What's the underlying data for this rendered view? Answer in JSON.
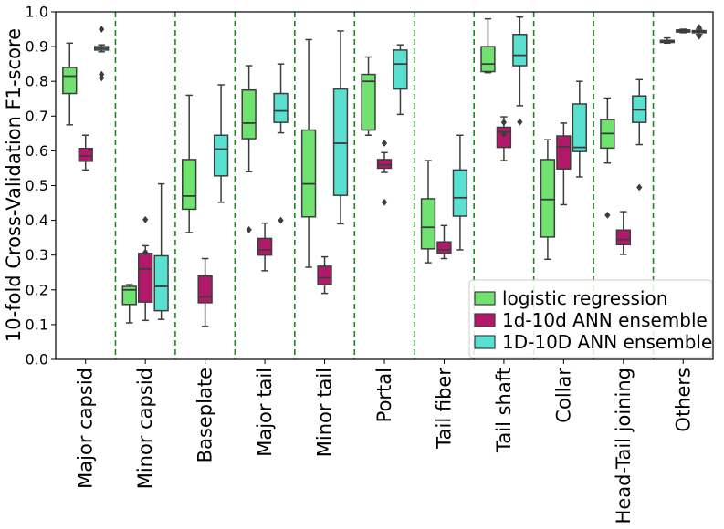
{
  "chart_data": {
    "type": "boxplot",
    "title": "",
    "xlabel": "",
    "ylabel": "10-fold Cross-Validation F1-score",
    "ylim": [
      0.0,
      1.0
    ],
    "yticks": [
      "0.0",
      "0.1",
      "0.2",
      "0.3",
      "0.4",
      "0.5",
      "0.6",
      "0.7",
      "0.8",
      "0.9",
      "1.0"
    ],
    "categories": [
      "Major capsid",
      "Minor capsid",
      "Baseplate",
      "Major tail",
      "Minor tail",
      "Portal",
      "Tail fiber",
      "Tail shaft",
      "Collar",
      "Head-Tail joining",
      "Others"
    ],
    "legend_position": "lower-right",
    "series": [
      {
        "name": "logistic regression",
        "color": "#6fe26f",
        "boxes": [
          {
            "whislo": 0.675,
            "q1": 0.765,
            "med": 0.815,
            "q3": 0.84,
            "whishi": 0.91,
            "fliers": []
          },
          {
            "whislo": 0.105,
            "q1": 0.158,
            "med": 0.2,
            "q3": 0.21,
            "whishi": 0.215,
            "fliers": []
          },
          {
            "whislo": 0.365,
            "q1": 0.432,
            "med": 0.47,
            "q3": 0.575,
            "whishi": 0.76,
            "fliers": []
          },
          {
            "whislo": 0.54,
            "q1": 0.635,
            "med": 0.68,
            "q3": 0.775,
            "whishi": 0.845,
            "fliers": [
              0.373
            ]
          },
          {
            "whislo": 0.265,
            "q1": 0.41,
            "med": 0.505,
            "q3": 0.66,
            "whishi": 0.92,
            "fliers": []
          },
          {
            "whislo": 0.645,
            "q1": 0.66,
            "med": 0.8,
            "q3": 0.82,
            "whishi": 0.87,
            "fliers": []
          },
          {
            "whislo": 0.278,
            "q1": 0.318,
            "med": 0.38,
            "q3": 0.462,
            "whishi": 0.572,
            "fliers": []
          },
          {
            "whislo": 0.825,
            "q1": 0.828,
            "med": 0.85,
            "q3": 0.9,
            "whishi": 0.98,
            "fliers": []
          },
          {
            "whislo": 0.288,
            "q1": 0.352,
            "med": 0.46,
            "q3": 0.575,
            "whishi": 0.632,
            "fliers": []
          },
          {
            "whislo": 0.565,
            "q1": 0.608,
            "med": 0.65,
            "q3": 0.69,
            "whishi": 0.752,
            "fliers": [
              0.415
            ]
          },
          {
            "whislo": 0.91,
            "q1": 0.912,
            "med": 0.915,
            "q3": 0.918,
            "whishi": 0.925,
            "fliers": []
          }
        ]
      },
      {
        "name": "1d-10d ANN ensemble",
        "color": "#b3196b",
        "boxes": [
          {
            "whislo": 0.545,
            "q1": 0.57,
            "med": 0.585,
            "q3": 0.607,
            "whishi": 0.645,
            "fliers": []
          },
          {
            "whislo": 0.112,
            "q1": 0.165,
            "med": 0.26,
            "q3": 0.305,
            "whishi": 0.327,
            "fliers": [
              0.402,
              0.308
            ]
          },
          {
            "whislo": 0.095,
            "q1": 0.163,
            "med": 0.18,
            "q3": 0.24,
            "whishi": 0.29,
            "fliers": []
          },
          {
            "whislo": 0.255,
            "q1": 0.3,
            "med": 0.315,
            "q3": 0.348,
            "whishi": 0.392,
            "fliers": []
          },
          {
            "whislo": 0.19,
            "q1": 0.215,
            "med": 0.235,
            "q3": 0.268,
            "whishi": 0.295,
            "fliers": []
          },
          {
            "whislo": 0.538,
            "q1": 0.55,
            "med": 0.56,
            "q3": 0.575,
            "whishi": 0.595,
            "fliers": [
              0.622,
              0.452
            ]
          },
          {
            "whislo": 0.29,
            "q1": 0.305,
            "med": 0.315,
            "q3": 0.338,
            "whishi": 0.385,
            "fliers": []
          },
          {
            "whislo": 0.572,
            "q1": 0.61,
            "med": 0.655,
            "q3": 0.668,
            "whishi": 0.698,
            "fliers": [
              0.682,
              0.648
            ]
          },
          {
            "whislo": 0.445,
            "q1": 0.548,
            "med": 0.612,
            "q3": 0.643,
            "whishi": 0.68,
            "fliers": []
          },
          {
            "whislo": 0.302,
            "q1": 0.33,
            "med": 0.345,
            "q3": 0.372,
            "whishi": 0.425,
            "fliers": []
          },
          {
            "whislo": 0.94,
            "q1": 0.942,
            "med": 0.945,
            "q3": 0.948,
            "whishi": 0.95,
            "fliers": []
          }
        ]
      },
      {
        "name": "1D-10D ANN ensemble",
        "color": "#59e0d0",
        "boxes": [
          {
            "whislo": 0.885,
            "q1": 0.89,
            "med": 0.895,
            "q3": 0.9,
            "whishi": 0.905,
            "fliers": [
              0.95,
              0.82,
              0.81
            ]
          },
          {
            "whislo": 0.115,
            "q1": 0.14,
            "med": 0.21,
            "q3": 0.298,
            "whishi": 0.505,
            "fliers": []
          },
          {
            "whislo": 0.452,
            "q1": 0.528,
            "med": 0.605,
            "q3": 0.645,
            "whishi": 0.79,
            "fliers": []
          },
          {
            "whislo": 0.652,
            "q1": 0.682,
            "med": 0.715,
            "q3": 0.765,
            "whishi": 0.85,
            "fliers": [
              0.4
            ]
          },
          {
            "whislo": 0.39,
            "q1": 0.472,
            "med": 0.622,
            "q3": 0.778,
            "whishi": 0.945,
            "fliers": []
          },
          {
            "whislo": 0.705,
            "q1": 0.778,
            "med": 0.85,
            "q3": 0.89,
            "whishi": 0.905,
            "fliers": []
          },
          {
            "whislo": 0.315,
            "q1": 0.412,
            "med": 0.465,
            "q3": 0.545,
            "whishi": 0.645,
            "fliers": []
          },
          {
            "whislo": 0.73,
            "q1": 0.845,
            "med": 0.875,
            "q3": 0.935,
            "whishi": 0.985,
            "fliers": [
              0.683
            ]
          },
          {
            "whislo": 0.525,
            "q1": 0.598,
            "med": 0.61,
            "q3": 0.735,
            "whishi": 0.8,
            "fliers": []
          },
          {
            "whislo": 0.618,
            "q1": 0.682,
            "med": 0.718,
            "q3": 0.758,
            "whishi": 0.805,
            "fliers": [
              0.495
            ]
          },
          {
            "whislo": 0.935,
            "q1": 0.94,
            "med": 0.943,
            "q3": 0.946,
            "whishi": 0.95,
            "fliers": [
              0.955,
              0.93
            ]
          }
        ]
      }
    ],
    "separator_color": "#1a8a1a",
    "box_edge_color": "#3d3d3d"
  }
}
